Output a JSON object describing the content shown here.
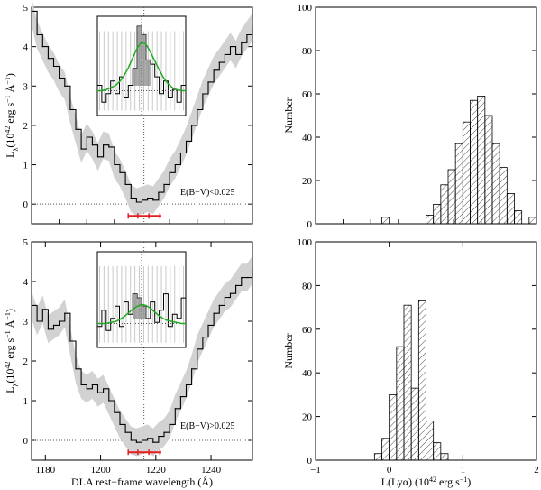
{
  "chart_data": [
    {
      "id": "spec-top",
      "type": "line",
      "xlabel": "",
      "ylabel": "L_λ (10^42 erg s^-1 Å^-1)",
      "ylabel_main": "L",
      "ylabel_sub": "λ",
      "ylabel_rest": "(10",
      "ylabel_exp1": "42",
      "ylabel_rest2": " erg s",
      "ylabel_exp2": "−1",
      "ylabel_rest3": " Å",
      "ylabel_exp3": "−1",
      "ylabel_close": ")",
      "xlim": [
        1175,
        1255
      ],
      "ylim": [
        -0.5,
        5
      ],
      "yticks": [
        "0",
        "1",
        "2",
        "3",
        "4",
        "5"
      ],
      "xticks": [],
      "annotation": "E(B−V)<0.025",
      "center_line_x": 1215.7,
      "zero_line": 0,
      "red_marker_range": [
        1210,
        1222
      ],
      "red_marker_ticks": [
        1210,
        1213.5,
        1217.5,
        1221.5
      ],
      "spectrum": {
        "x": [
          1175,
          1177,
          1179,
          1181,
          1183,
          1185,
          1187,
          1189,
          1191,
          1193,
          1195,
          1197,
          1199,
          1201,
          1203,
          1205,
          1207,
          1209,
          1211,
          1213,
          1215,
          1217,
          1219,
          1221,
          1223,
          1225,
          1227,
          1229,
          1231,
          1233,
          1235,
          1237,
          1239,
          1241,
          1243,
          1245,
          1247,
          1249,
          1251,
          1253,
          1255
        ],
        "y": [
          4.9,
          4.3,
          4.0,
          3.7,
          3.5,
          3.2,
          3.0,
          2.4,
          1.9,
          1.4,
          1.7,
          1.5,
          1.2,
          1.5,
          1.45,
          1.0,
          0.8,
          0.5,
          0.15,
          0.05,
          0.1,
          0.15,
          0.1,
          0.3,
          0.5,
          0.8,
          1.0,
          1.3,
          1.6,
          2.0,
          2.4,
          2.8,
          3.1,
          3.4,
          3.6,
          3.8,
          4.0,
          3.8,
          4.1,
          4.3,
          4.5
        ]
      },
      "inset": {
        "profile_x": [
          0,
          1,
          2,
          3,
          4,
          5,
          6,
          7,
          8,
          9,
          10,
          11,
          12,
          13,
          14,
          15,
          16,
          17,
          18,
          19,
          20
        ],
        "profile_y": [
          0.25,
          0.25,
          0.26,
          0.28,
          0.3,
          0.34,
          0.4,
          0.48,
          0.58,
          0.68,
          0.74,
          0.72,
          0.64,
          0.55,
          0.46,
          0.38,
          0.32,
          0.28,
          0.26,
          0.25,
          0.25
        ],
        "bars_y": [
          0.3,
          0.1,
          0.2,
          0.35,
          0.2,
          0.4,
          0.15,
          0.3,
          0.5,
          1.0,
          0.9,
          0.6,
          0.55,
          0.4,
          0.2,
          0.35,
          0.15,
          0.25,
          0.1,
          0.3
        ]
      }
    },
    {
      "id": "hist-top",
      "type": "bar",
      "xlabel": "",
      "ylabel": "Number",
      "xlim": [
        -1,
        2
      ],
      "ylim": [
        0,
        100
      ],
      "yticks": [
        "0",
        "20",
        "40",
        "60",
        "80",
        "100"
      ],
      "xticks": [],
      "bins": [
        -0.1,
        0.0,
        0.1,
        0.2,
        0.3,
        0.4,
        0.5,
        0.6,
        0.7,
        0.8,
        0.9,
        1.0,
        1.1,
        1.2,
        1.3,
        1.4,
        1.5,
        1.6,
        1.7,
        1.8,
        1.9
      ],
      "values": [
        3,
        0,
        0,
        0,
        0,
        0,
        4,
        9,
        18,
        25,
        37,
        47,
        57,
        59,
        50,
        37,
        26,
        14,
        6,
        0,
        3
      ]
    },
    {
      "id": "spec-bottom",
      "type": "line",
      "xlabel": "DLA rest−frame wavelength (Å)",
      "ylabel": "L_λ (10^42 erg s^-1 Å^-1)",
      "ylabel_main": "L",
      "ylabel_sub": "λ",
      "ylabel_rest": "(10",
      "ylabel_exp1": "42",
      "ylabel_rest2": " erg s",
      "ylabel_exp2": "−1",
      "ylabel_rest3": " Å",
      "ylabel_exp3": "−1",
      "ylabel_close": ")",
      "xlim": [
        1175,
        1255
      ],
      "ylim": [
        -0.5,
        5
      ],
      "yticks": [
        "0",
        "1",
        "2",
        "3",
        "4",
        "5"
      ],
      "xticks": [
        "1180",
        "1200",
        "1220",
        "1240"
      ],
      "xtick_values": [
        1180,
        1200,
        1220,
        1240
      ],
      "annotation": "E(B−V)>0.025",
      "center_line_x": 1215.7,
      "zero_line": 0,
      "red_marker_range": [
        1210,
        1222
      ],
      "red_marker_ticks": [
        1210,
        1213.5,
        1217.5,
        1221.5
      ],
      "spectrum": {
        "x": [
          1175,
          1177,
          1179,
          1181,
          1183,
          1185,
          1187,
          1189,
          1191,
          1193,
          1195,
          1197,
          1199,
          1201,
          1203,
          1205,
          1207,
          1209,
          1211,
          1213,
          1215,
          1217,
          1219,
          1221,
          1223,
          1225,
          1227,
          1229,
          1231,
          1233,
          1235,
          1237,
          1239,
          1241,
          1243,
          1245,
          1247,
          1249,
          1251,
          1253,
          1255
        ],
        "y": [
          3.4,
          3.0,
          3.3,
          2.8,
          2.9,
          3.0,
          3.2,
          2.5,
          1.8,
          1.4,
          1.3,
          1.4,
          1.2,
          1.3,
          1.0,
          0.7,
          0.4,
          0.2,
          0.0,
          -0.05,
          0.0,
          0.05,
          -0.05,
          0.1,
          0.2,
          0.4,
          0.8,
          1.1,
          1.4,
          1.8,
          2.3,
          2.6,
          2.9,
          3.2,
          3.4,
          3.6,
          3.7,
          3.9,
          4.1,
          4.1,
          4.3
        ]
      },
      "inset": {
        "profile_x": [
          0,
          1,
          2,
          3,
          4,
          5,
          6,
          7,
          8,
          9,
          10,
          11,
          12,
          13,
          14,
          15,
          16,
          17,
          18,
          19,
          20
        ],
        "profile_y": [
          0.25,
          0.25,
          0.25,
          0.26,
          0.27,
          0.29,
          0.32,
          0.36,
          0.4,
          0.43,
          0.45,
          0.44,
          0.41,
          0.37,
          0.33,
          0.3,
          0.28,
          0.27,
          0.26,
          0.25,
          0.25
        ],
        "bars_y": [
          0.2,
          0.4,
          0.15,
          0.3,
          0.45,
          0.2,
          0.5,
          0.35,
          0.6,
          0.55,
          0.45,
          0.3,
          0.5,
          0.25,
          0.4,
          0.6,
          0.2,
          0.35,
          0.3,
          0.55
        ]
      }
    },
    {
      "id": "hist-bottom",
      "type": "bar",
      "xlabel": "L(Lyα)  (10^42 erg s^-1)",
      "xlabel_main": "L(Lyα)  (10",
      "xlabel_exp1": "42",
      "xlabel_mid": " erg s",
      "xlabel_exp2": "−1",
      "xlabel_close": ")",
      "ylabel": "Number",
      "xlim": [
        -1,
        2
      ],
      "ylim": [
        0,
        100
      ],
      "yticks": [
        "0",
        "20",
        "40",
        "60",
        "80",
        "100"
      ],
      "xticks": [
        "−1",
        "0",
        "1",
        "2"
      ],
      "xtick_values": [
        -1,
        0,
        1,
        2
      ],
      "bins": [
        -0.2,
        -0.1,
        0.0,
        0.1,
        0.2,
        0.3,
        0.4,
        0.5,
        0.6,
        0.7
      ],
      "values": [
        3,
        10,
        30,
        52,
        71,
        33,
        73,
        18,
        8,
        3
      ]
    }
  ]
}
